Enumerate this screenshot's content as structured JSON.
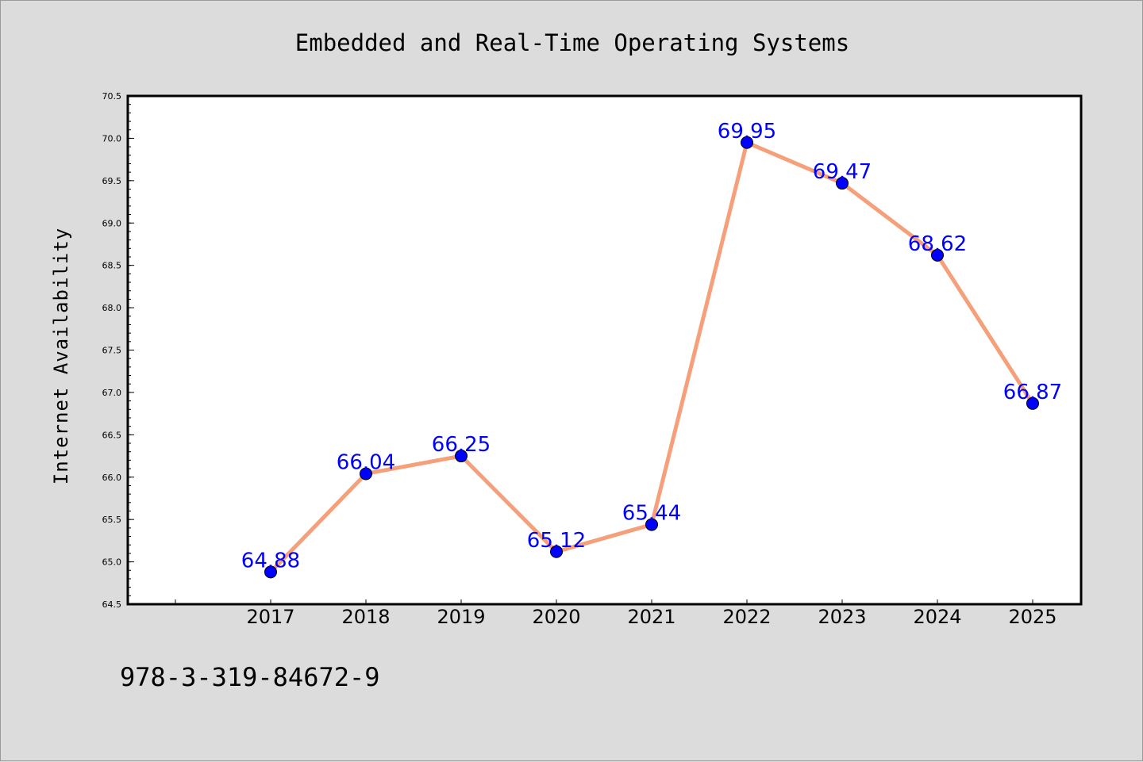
{
  "chart_data": {
    "type": "line",
    "title": "Embedded and Real-Time Operating Systems",
    "xlabel": "",
    "ylabel": "Internet Availability",
    "categories": [
      "2017",
      "2018",
      "2019",
      "2020",
      "2021",
      "2022",
      "2023",
      "2024",
      "2025"
    ],
    "series": [
      {
        "values": [
          64.88,
          66.04,
          66.25,
          65.12,
          65.44,
          69.95,
          69.47,
          68.62,
          66.87
        ],
        "line_color": "#f5a07a",
        "marker_color": "#0000ff"
      }
    ],
    "data_labels": [
      "64.88",
      "66.04",
      "66.25",
      "65.12",
      "65.44",
      "69.95",
      "69.47",
      "68.62",
      "66.87"
    ],
    "ylim": [
      64.5,
      70.5
    ],
    "yticks": [
      "64.5",
      "65.0",
      "65.5",
      "66.0",
      "66.5",
      "67.0",
      "67.5",
      "68.0",
      "68.5",
      "69.0",
      "69.5",
      "70.0",
      "70.5"
    ],
    "grid": false,
    "legend": "none"
  },
  "footer_code": "978-3-319-84672-9",
  "colors": {
    "background": "#dcdcdc",
    "plot_background": "#ffffff",
    "label_color": "#0000ff"
  }
}
